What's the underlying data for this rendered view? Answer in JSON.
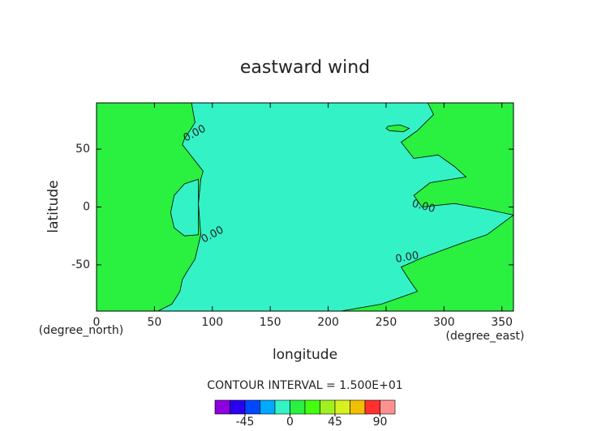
{
  "chart_data": {
    "type": "contour",
    "title": "eastward wind",
    "x_label": "longitude",
    "y_label": "latitude",
    "x_unit": "(degree_east)",
    "y_unit": "(degree_north)",
    "xlim": [
      0,
      360
    ],
    "ylim": [
      -90,
      90
    ],
    "xticks": [
      0,
      50,
      100,
      150,
      200,
      250,
      300,
      350
    ],
    "yticks": [
      -50,
      0,
      50
    ],
    "base_fill": "#2af040",
    "contour_label": "0.00",
    "contours": [
      {
        "fill": "#33f2c6",
        "lon": [
          82,
          85,
          76,
          74,
          92,
          90,
          88,
          90,
          85,
          78,
          74,
          72,
          65,
          53,
          211,
          246,
          277,
          270,
          263,
          281,
          316,
          337,
          360,
          360,
          337,
          309,
          281,
          274,
          288,
          319,
          309,
          295,
          274,
          263,
          277,
          291,
          286
        ],
        "lat": [
          90,
          73,
          59,
          54,
          31,
          24,
          3,
          -24,
          -45,
          -56,
          -63,
          -73,
          -84,
          -90,
          -90,
          -84,
          -73,
          -63,
          -52,
          -44,
          -31,
          -24,
          -7,
          -7,
          -2,
          3,
          0,
          10,
          21,
          26,
          35,
          45,
          42,
          56,
          66,
          80,
          90
        ]
      },
      {
        "fill": "#33f2c6",
        "lon": [
          88,
          76,
          67,
          64,
          67,
          76,
          88
        ],
        "lat": [
          24,
          20,
          10,
          -5,
          -18,
          -25,
          -24
        ]
      },
      {
        "fill": "#2af040",
        "lon": [
          252,
          262,
          270,
          265,
          253,
          250,
          252
        ],
        "lat": [
          70,
          71,
          68,
          65,
          66,
          68,
          70
        ]
      }
    ],
    "colorbar": {
      "note": "CONTOUR INTERVAL = 1.500E+01",
      "levels": [
        -75,
        -60,
        -45,
        -30,
        -15,
        0,
        15,
        30,
        45,
        60,
        75,
        90,
        105
      ],
      "colors": [
        "#8c00e0",
        "#2a00f0",
        "#0048ff",
        "#00a8ff",
        "#33f2c6",
        "#2af040",
        "#44ff10",
        "#a0f020",
        "#d8f020",
        "#f0c000",
        "#ff3030",
        "#ff9090"
      ],
      "ticks": [
        -45,
        0,
        45,
        90
      ]
    }
  }
}
